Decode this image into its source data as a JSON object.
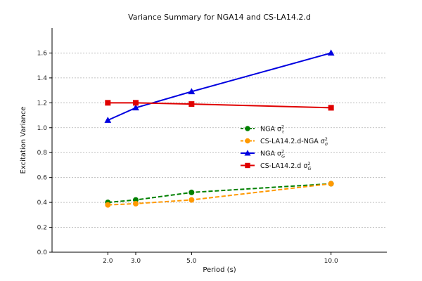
{
  "chart_data": {
    "type": "line",
    "title": "Variance Summary for NGA14 and CS-LA14.2.d",
    "xlabel": "Period (s)",
    "ylabel": "Excitation Variance",
    "xlim": [
      0,
      12.0
    ],
    "ylim": [
      0.0,
      1.8
    ],
    "xticks": [
      2.0,
      3.0,
      5.0,
      10.0
    ],
    "xtick_labels": [
      "2.0",
      "3.0",
      "5.0",
      "10.0"
    ],
    "yticks": [
      0.0,
      0.2,
      0.4,
      0.6,
      0.8,
      1.0,
      1.2,
      1.4,
      1.6
    ],
    "ytick_labels": [
      "0.0",
      "0.2",
      "0.4",
      "0.6",
      "0.8",
      "1.0",
      "1.2",
      "1.4",
      "1.6"
    ],
    "grid": "horizontal dotted",
    "legend_position": "center-right",
    "x": [
      2.0,
      3.0,
      5.0,
      10.0
    ],
    "series": [
      {
        "key": "nga_tau",
        "name_main": "NGA σ",
        "sup": "2",
        "sub": "τ",
        "color": "#008000",
        "dash": "dashed",
        "marker": "circle",
        "values": [
          0.4,
          0.42,
          0.48,
          0.55
        ]
      },
      {
        "key": "cs_nga_sigma",
        "name_main": "CS-LA14.2.d-NGA σ",
        "sup": "2",
        "sub": "σ",
        "color": "#ff9900",
        "dash": "dashed",
        "marker": "circle",
        "values": [
          0.38,
          0.39,
          0.42,
          0.55
        ]
      },
      {
        "key": "nga_G",
        "name_main": "NGA σ",
        "sup": "2",
        "sub": "G",
        "color": "#0000e0",
        "dash": "solid",
        "marker": "triangle",
        "values": [
          1.06,
          1.16,
          1.29,
          1.6
        ]
      },
      {
        "key": "cs_G",
        "name_main": "CS-LA14.2.d σ",
        "sup": "2",
        "sub": "G",
        "color": "#e00000",
        "dash": "solid",
        "marker": "square",
        "values": [
          1.2,
          1.2,
          1.19,
          1.16
        ]
      }
    ]
  }
}
